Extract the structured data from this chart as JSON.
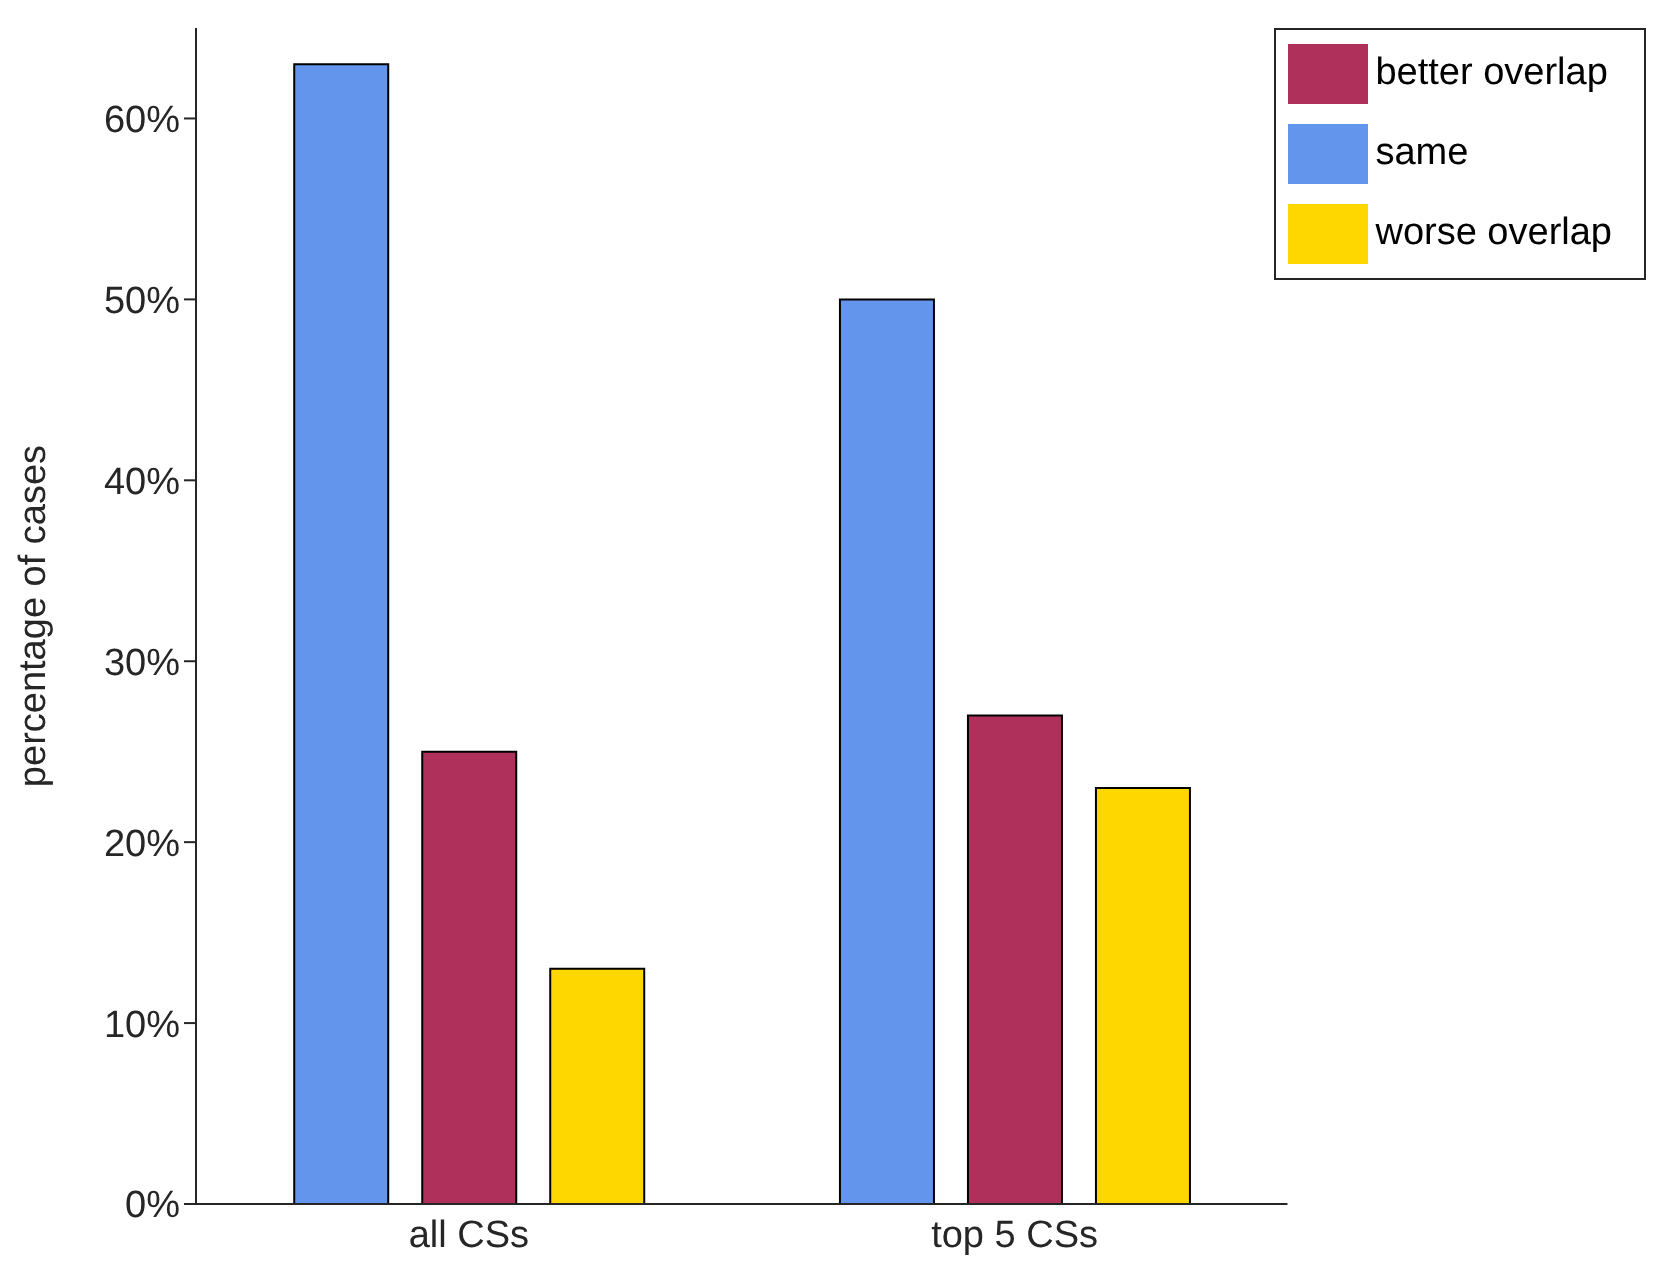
{
  "chart_data": {
    "type": "bar",
    "ylabel": "percentage of cases",
    "categories": [
      "all CSs",
      "top 5 CSs"
    ],
    "series": [
      {
        "name": "same",
        "color": "#6495ed",
        "values": [
          63,
          50
        ]
      },
      {
        "name": "better overlap",
        "color": "#b0305c",
        "values": [
          25,
          27
        ]
      },
      {
        "name": "worse overlap",
        "color": "#ffd700",
        "values": [
          13,
          23
        ]
      }
    ],
    "ylim": [
      0,
      65
    ],
    "yticks": [
      {
        "value": 0,
        "label": "0%"
      },
      {
        "value": 10,
        "label": "10%"
      },
      {
        "value": 20,
        "label": "20%"
      },
      {
        "value": 30,
        "label": "30%"
      },
      {
        "value": 40,
        "label": "40%"
      },
      {
        "value": 50,
        "label": "50%"
      },
      {
        "value": 60,
        "label": "60%"
      }
    ],
    "grid": false,
    "legend": "top right"
  }
}
